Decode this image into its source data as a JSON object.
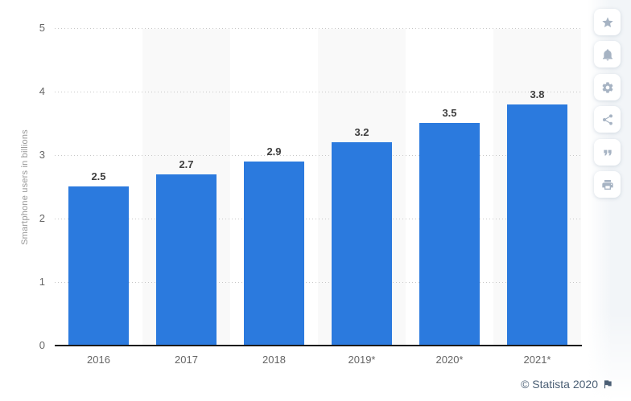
{
  "chart_data": {
    "type": "bar",
    "categories": [
      "2016",
      "2017",
      "2018",
      "2019*",
      "2020*",
      "2021*"
    ],
    "values": [
      2.5,
      2.7,
      2.9,
      3.2,
      3.5,
      3.8
    ],
    "title": "",
    "xlabel": "",
    "ylabel": "Smartphone users in billions",
    "ylim": [
      0,
      5
    ],
    "yticks": [
      0,
      1,
      2,
      3,
      4,
      5
    ],
    "grid": "horizontal-dotted",
    "legend": "none",
    "bar_color": "#2b7ade",
    "column_stripe_color": "#f9f9f9",
    "striped_categories": [
      "2017",
      "2019*",
      "2021*"
    ]
  },
  "toolbar": {
    "icons": [
      {
        "name": "star-icon"
      },
      {
        "name": "bell-icon"
      },
      {
        "name": "gear-icon"
      },
      {
        "name": "share-icon"
      },
      {
        "name": "quote-icon"
      },
      {
        "name": "print-icon"
      }
    ]
  },
  "footer": {
    "copyright": "© Statista 2020",
    "flag": "statista-flag-icon"
  }
}
